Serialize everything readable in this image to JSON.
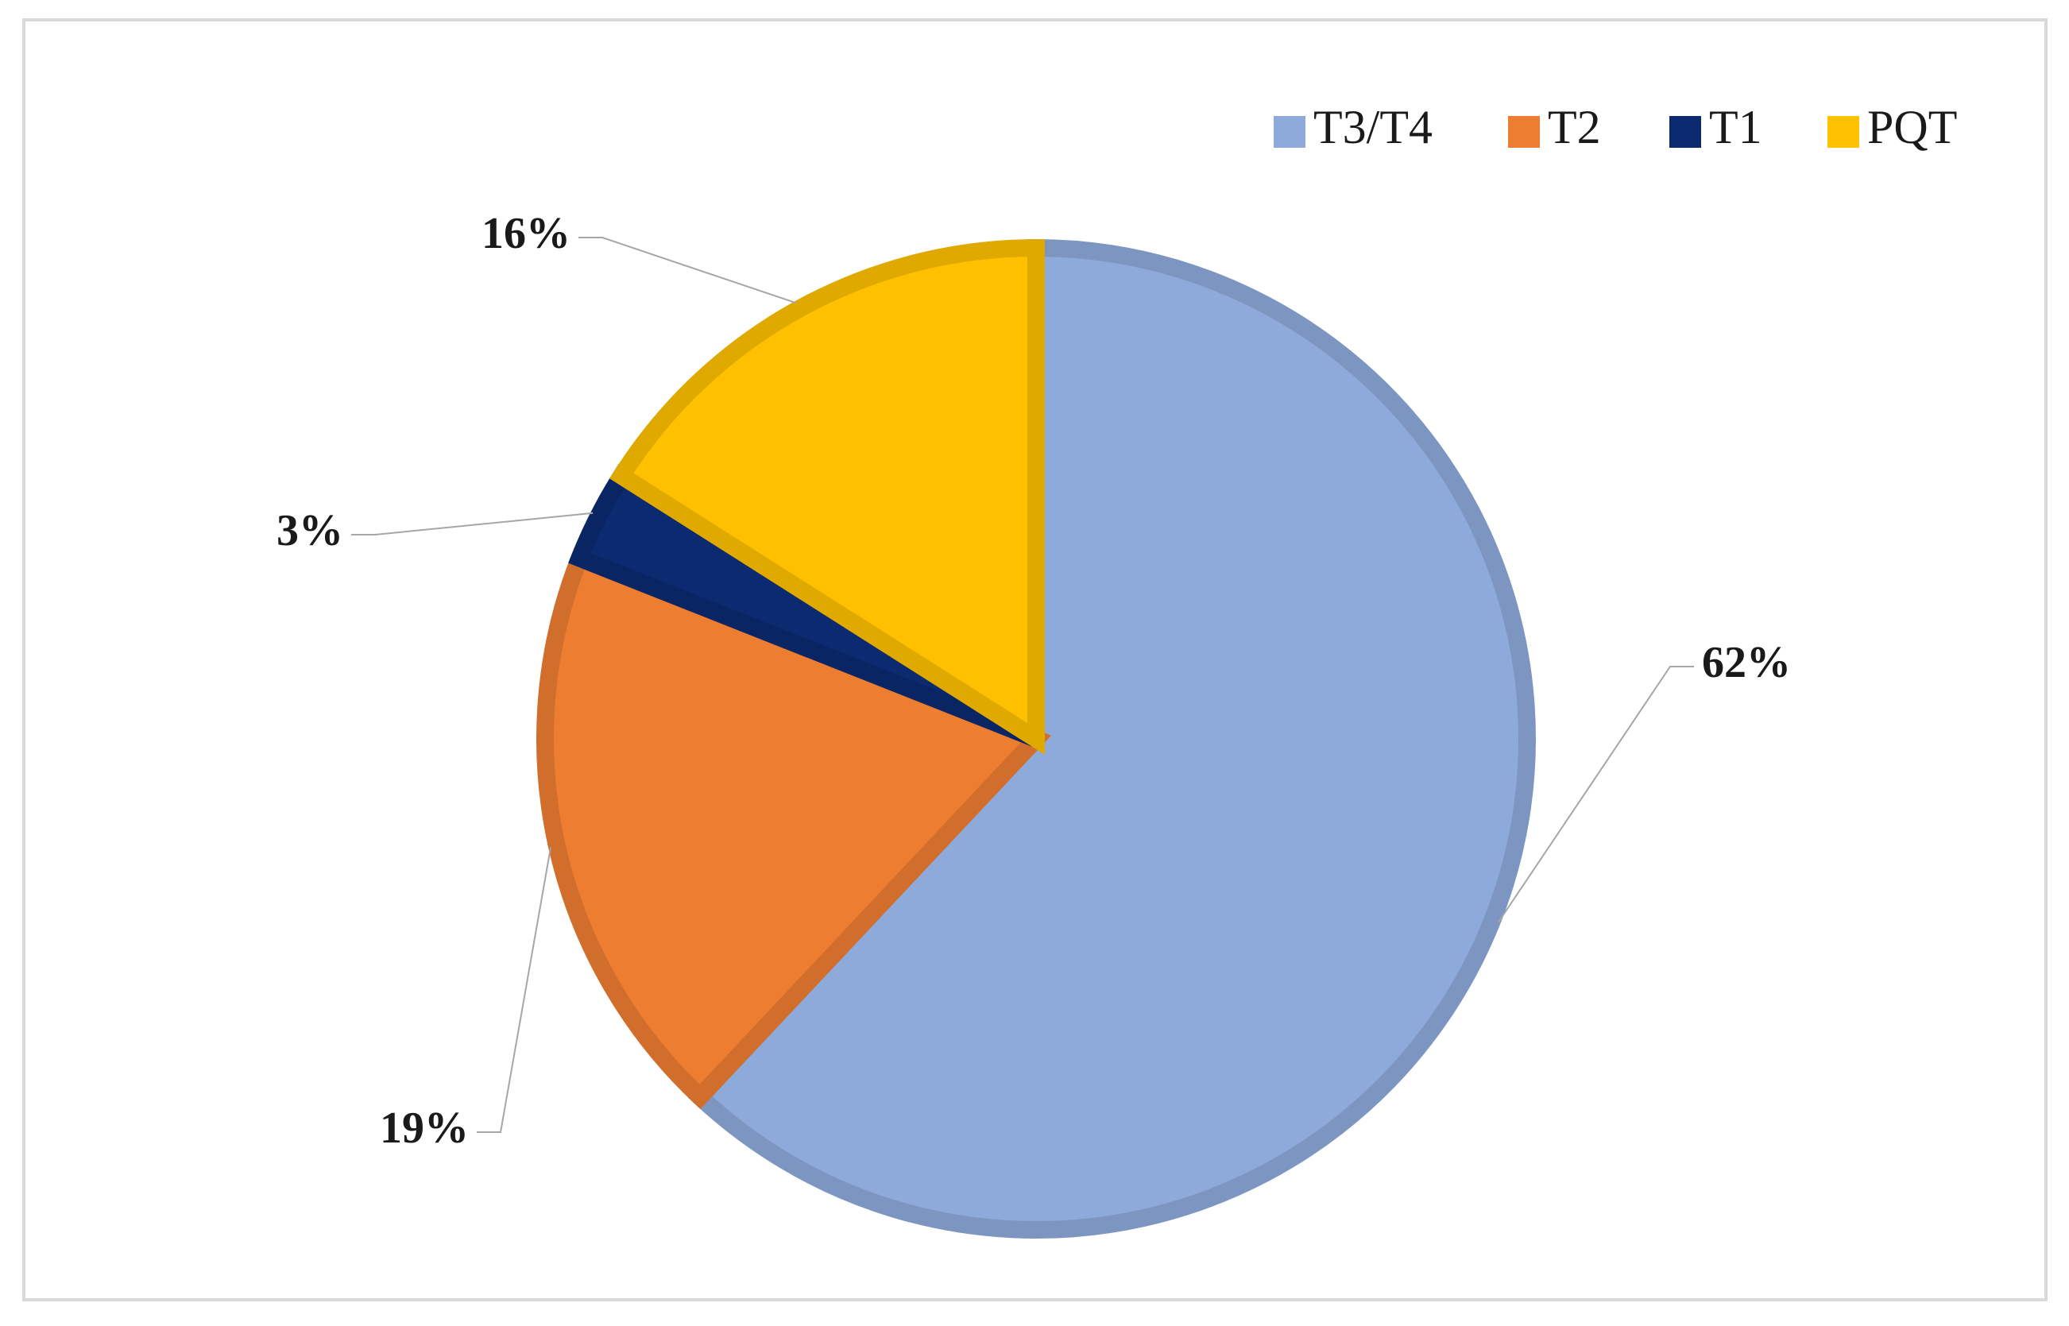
{
  "chart_data": {
    "type": "pie",
    "categories": [
      "T3/T4",
      "T2",
      "T1",
      "PQT"
    ],
    "values": [
      62,
      19,
      3,
      16
    ],
    "value_labels": [
      "62%",
      "19%",
      "3%",
      "16%"
    ],
    "colors": [
      "#8eaadb",
      "#ed7d31",
      "#0b2a70",
      "#ffc000"
    ],
    "legend": "top-right"
  }
}
